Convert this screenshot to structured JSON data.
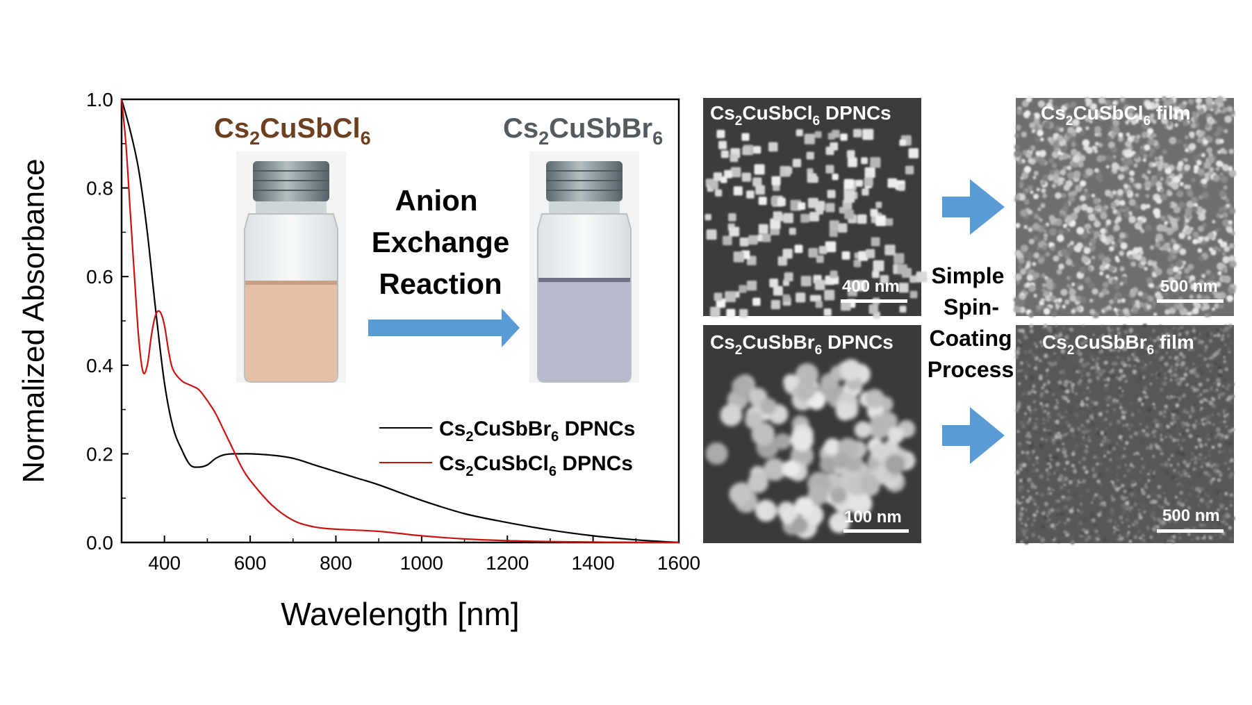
{
  "chart_data": {
    "type": "line",
    "xlabel": "Wavelength [nm]",
    "ylabel": "Normalized Absorbance",
    "xlim": [
      300,
      1600
    ],
    "ylim": [
      0.0,
      1.0
    ],
    "xticks": [
      "400",
      "600",
      "800",
      "1000",
      "1200",
      "1400",
      "1600"
    ],
    "xtick_values": [
      400,
      600,
      800,
      1000,
      1200,
      1400,
      1600
    ],
    "yticks": [
      "0.0",
      "0.2",
      "0.4",
      "0.6",
      "0.8",
      "1.0"
    ],
    "ytick_values": [
      0.0,
      0.2,
      0.4,
      0.6,
      0.8,
      1.0
    ],
    "grid": false,
    "legend_position": "middle-right",
    "series": [
      {
        "name": "Cs2CuSbBr6 DPNCs",
        "color": "#000000",
        "x": [
          300,
          320,
          340,
          360,
          380,
          400,
          420,
          440,
          460,
          480,
          500,
          520,
          540,
          560,
          580,
          600,
          650,
          700,
          750,
          800,
          850,
          900,
          1000,
          1100,
          1200,
          1300,
          1400,
          1500,
          1600
        ],
        "y": [
          1.0,
          0.93,
          0.84,
          0.7,
          0.52,
          0.36,
          0.26,
          0.21,
          0.175,
          0.17,
          0.175,
          0.19,
          0.198,
          0.2,
          0.2,
          0.2,
          0.197,
          0.19,
          0.175,
          0.16,
          0.145,
          0.13,
          0.095,
          0.065,
          0.045,
          0.028,
          0.015,
          0.006,
          0.0
        ]
      },
      {
        "name": "Cs2CuSbCl6 DPNCs",
        "color": "#cc1111",
        "x": [
          300,
          310,
          320,
          330,
          340,
          350,
          360,
          370,
          380,
          390,
          400,
          410,
          420,
          440,
          460,
          480,
          500,
          520,
          540,
          560,
          580,
          600,
          650,
          700,
          750,
          800,
          900,
          1000,
          1100,
          1200,
          1300,
          1400,
          1500,
          1600
        ],
        "y": [
          1.0,
          0.9,
          0.75,
          0.6,
          0.46,
          0.385,
          0.4,
          0.47,
          0.515,
          0.52,
          0.49,
          0.43,
          0.39,
          0.365,
          0.355,
          0.345,
          0.32,
          0.29,
          0.25,
          0.21,
          0.17,
          0.14,
          0.085,
          0.05,
          0.035,
          0.03,
          0.025,
          0.015,
          0.008,
          0.004,
          0.002,
          0.001,
          0.0,
          0.0
        ]
      }
    ]
  },
  "legend": {
    "br": {
      "pre": "Cs",
      "s1": "2",
      "mid": "CuSbBr",
      "s2": "6",
      "post": " DPNCs"
    },
    "cl": {
      "pre": "Cs",
      "s1": "2",
      "mid": "CuSbCl",
      "s2": "6",
      "post": " DPNCs"
    }
  },
  "inset": {
    "left_title": {
      "pre": "Cs",
      "s1": "2",
      "mid": "CuSbCl",
      "s2": "6",
      "color": "#6b3f1f"
    },
    "right_title": {
      "pre": "Cs",
      "s1": "2",
      "mid": "CuSbBr",
      "s2": "6",
      "color": "#555a5f"
    },
    "reaction_lines": [
      "Anion",
      "Exchange",
      "Reaction"
    ],
    "arrow_color": "#5b9bd5",
    "left_liquid_color": "#e6c0a6",
    "right_liquid_color": "#b6b8cc",
    "cap_color": "#7c8a8e"
  },
  "micrographs": {
    "tl": {
      "pre": "Cs",
      "s1": "2",
      "mid": "CuSbCl",
      "s2": "6",
      "post": " DPNCs",
      "scale": "400 nm"
    },
    "bl": {
      "pre": "Cs",
      "s1": "2",
      "mid": "CuSbBr",
      "s2": "6",
      "post": " DPNCs",
      "scale": "100 nm"
    },
    "tr": {
      "pre": "Cs",
      "s1": "2",
      "mid": "CuSbCl",
      "s2": "6",
      "post": " film",
      "scale": "500 nm"
    },
    "br": {
      "pre": "Cs",
      "s1": "2",
      "mid": "CuSbBr",
      "s2": "6",
      "post": " film",
      "scale": "500 nm"
    }
  },
  "process_text": [
    "Simple",
    "Spin-",
    "Coating",
    "Process"
  ]
}
